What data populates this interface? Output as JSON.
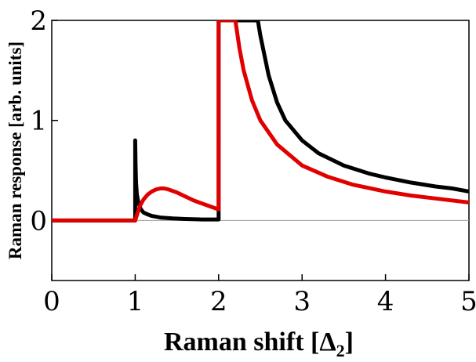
{
  "chart_data": {
    "type": "line",
    "title": "",
    "xlabel": "Raman shift [Δ",
    "xlabel_sub": "2",
    "xlabel_end": "]",
    "ylabel": "Raman response [arb. units]",
    "xlim": [
      0,
      5
    ],
    "ylim": [
      -0.6,
      2
    ],
    "xticks": [
      0,
      1,
      2,
      3,
      4,
      5
    ],
    "yticks": [
      0,
      1,
      2
    ],
    "grid": false,
    "zero_line": true,
    "series": [
      {
        "color": "#000000",
        "points": [
          [
            0,
            0
          ],
          [
            1.0,
            0
          ],
          [
            1.0,
            0.8
          ],
          [
            1.005,
            0.55
          ],
          [
            1.01,
            0.38
          ],
          [
            1.02,
            0.26
          ],
          [
            1.04,
            0.17
          ],
          [
            1.07,
            0.11
          ],
          [
            1.1,
            0.08
          ],
          [
            1.15,
            0.06
          ],
          [
            1.2,
            0.045
          ],
          [
            1.3,
            0.03
          ],
          [
            1.45,
            0.02
          ],
          [
            1.6,
            0.015
          ],
          [
            1.8,
            0.01
          ],
          [
            1.98,
            0.01
          ],
          [
            2.0,
            0.01
          ],
          [
            2.0,
            2.0
          ],
          [
            2.47,
            2.0
          ],
          [
            2.5,
            1.85
          ],
          [
            2.6,
            1.45
          ],
          [
            2.7,
            1.18
          ],
          [
            2.8,
            1.0
          ],
          [
            3.0,
            0.8
          ],
          [
            3.2,
            0.67
          ],
          [
            3.5,
            0.55
          ],
          [
            3.8,
            0.47
          ],
          [
            4.0,
            0.43
          ],
          [
            4.3,
            0.38
          ],
          [
            4.6,
            0.34
          ],
          [
            4.8,
            0.32
          ],
          [
            5.0,
            0.29
          ]
        ]
      },
      {
        "color": "#e00000",
        "points": [
          [
            0,
            0
          ],
          [
            1.0,
            0
          ],
          [
            1.03,
            0.08
          ],
          [
            1.06,
            0.15
          ],
          [
            1.1,
            0.21
          ],
          [
            1.15,
            0.26
          ],
          [
            1.2,
            0.29
          ],
          [
            1.25,
            0.31
          ],
          [
            1.3,
            0.32
          ],
          [
            1.35,
            0.32
          ],
          [
            1.4,
            0.31
          ],
          [
            1.5,
            0.28
          ],
          [
            1.6,
            0.24
          ],
          [
            1.7,
            0.2
          ],
          [
            1.8,
            0.17
          ],
          [
            1.9,
            0.14
          ],
          [
            2.0,
            0.11
          ],
          [
            2.0,
            2.0
          ],
          [
            2.2,
            2.0
          ],
          [
            2.25,
            1.72
          ],
          [
            2.3,
            1.5
          ],
          [
            2.4,
            1.2
          ],
          [
            2.5,
            1.0
          ],
          [
            2.7,
            0.76
          ],
          [
            3.0,
            0.55
          ],
          [
            3.3,
            0.44
          ],
          [
            3.6,
            0.36
          ],
          [
            4.0,
            0.29
          ],
          [
            4.3,
            0.25
          ],
          [
            4.6,
            0.22
          ],
          [
            5.0,
            0.18
          ]
        ]
      }
    ]
  }
}
